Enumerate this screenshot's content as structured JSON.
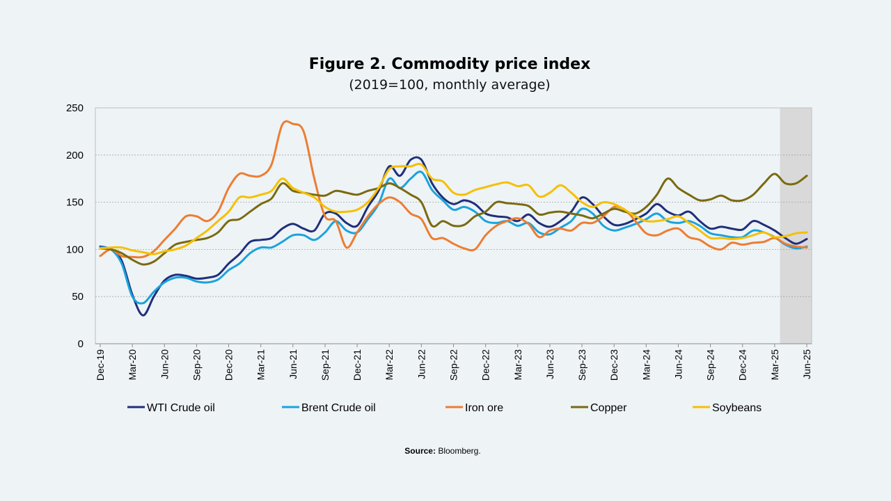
{
  "chart_data": {
    "type": "line",
    "title": "Figure 2. Commodity price index",
    "subtitle": "(2019=100, monthly average)",
    "ylim": [
      0,
      250
    ],
    "yticks": [
      0,
      50,
      100,
      150,
      200,
      250
    ],
    "grid": "horizontal dashed",
    "shaded_period": {
      "from": "Apr-25",
      "to": "Jun-25"
    },
    "xticks": [
      "Dec-19",
      "Mar-20",
      "Jun-20",
      "Sep-20",
      "Dec-20",
      "Mar-21",
      "Jun-21",
      "Sep-21",
      "Dec-21",
      "Mar-22",
      "Jun-22",
      "Sep-22",
      "Dec-22",
      "Mar-23",
      "Jun-23",
      "Sep-23",
      "Dec-23",
      "Mar-24",
      "Jun-24",
      "Sep-24",
      "Dec-24",
      "Mar-25",
      "Jun-25"
    ],
    "x": [
      "Dec-19",
      "Jan-20",
      "Feb-20",
      "Mar-20",
      "Apr-20",
      "May-20",
      "Jun-20",
      "Jul-20",
      "Aug-20",
      "Sep-20",
      "Oct-20",
      "Nov-20",
      "Dec-20",
      "Jan-21",
      "Feb-21",
      "Mar-21",
      "Apr-21",
      "May-21",
      "Jun-21",
      "Jul-21",
      "Aug-21",
      "Sep-21",
      "Oct-21",
      "Nov-21",
      "Dec-21",
      "Jan-22",
      "Feb-22",
      "Mar-22",
      "Apr-22",
      "May-22",
      "Jun-22",
      "Jul-22",
      "Aug-22",
      "Sep-22",
      "Oct-22",
      "Nov-22",
      "Dec-22",
      "Jan-23",
      "Feb-23",
      "Mar-23",
      "Apr-23",
      "May-23",
      "Jun-23",
      "Jul-23",
      "Aug-23",
      "Sep-23",
      "Oct-23",
      "Nov-23",
      "Dec-23",
      "Jan-24",
      "Feb-24",
      "Mar-24",
      "Apr-24",
      "May-24",
      "Jun-24",
      "Jul-24",
      "Aug-24",
      "Sep-24",
      "Oct-24",
      "Nov-24",
      "Dec-24",
      "Jan-25",
      "Feb-25",
      "Mar-25",
      "Apr-25",
      "May-25",
      "Jun-25"
    ],
    "series": [
      {
        "name": "WTI Crude oil",
        "color": "#1f2f7a",
        "values": [
          103,
          100,
          88,
          52,
          30,
          50,
          67,
          73,
          72,
          69,
          70,
          73,
          85,
          95,
          108,
          110,
          112,
          122,
          127,
          122,
          120,
          138,
          138,
          128,
          125,
          145,
          162,
          188,
          178,
          195,
          195,
          170,
          155,
          148,
          152,
          148,
          138,
          135,
          134,
          130,
          137,
          128,
          124,
          130,
          140,
          155,
          148,
          135,
          126,
          127,
          132,
          138,
          148,
          140,
          136,
          140,
          130,
          122,
          124,
          122,
          121,
          130,
          126,
          120,
          112,
          106,
          111
        ]
      },
      {
        "name": "Brent Crude oil",
        "color": "#1aa3dc",
        "values": [
          102,
          100,
          85,
          50,
          43,
          55,
          65,
          70,
          70,
          66,
          65,
          68,
          78,
          85,
          96,
          102,
          102,
          108,
          115,
          115,
          110,
          118,
          130,
          120,
          118,
          132,
          148,
          175,
          165,
          175,
          182,
          163,
          152,
          142,
          145,
          140,
          130,
          128,
          130,
          125,
          128,
          118,
          116,
          123,
          130,
          143,
          138,
          125,
          120,
          123,
          127,
          132,
          138,
          130,
          128,
          130,
          125,
          117,
          115,
          113,
          113,
          120,
          118,
          113,
          105,
          101,
          103
        ]
      },
      {
        "name": "Iron ore",
        "color": "#ed7d31",
        "values": [
          93,
          100,
          93,
          92,
          92,
          98,
          110,
          122,
          135,
          135,
          130,
          140,
          165,
          180,
          178,
          178,
          190,
          232,
          233,
          225,
          175,
          135,
          130,
          102,
          118,
          135,
          148,
          155,
          150,
          138,
          132,
          112,
          112,
          106,
          101,
          100,
          115,
          125,
          130,
          133,
          127,
          113,
          120,
          122,
          120,
          128,
          128,
          135,
          145,
          142,
          130,
          117,
          115,
          120,
          122,
          113,
          110,
          103,
          100,
          107,
          105,
          107,
          108,
          112,
          106,
          103,
          102
        ]
      },
      {
        "name": "Copper",
        "color": "#7a6a10",
        "values": [
          101,
          100,
          96,
          89,
          84,
          87,
          96,
          105,
          108,
          110,
          112,
          118,
          130,
          132,
          140,
          148,
          154,
          170,
          162,
          160,
          158,
          157,
          162,
          160,
          158,
          162,
          165,
          170,
          165,
          158,
          150,
          125,
          130,
          125,
          126,
          135,
          140,
          150,
          149,
          148,
          146,
          137,
          139,
          140,
          138,
          136,
          133,
          138,
          143,
          140,
          138,
          145,
          158,
          175,
          165,
          158,
          152,
          153,
          157,
          152,
          152,
          158,
          170,
          180,
          170,
          170,
          178
        ]
      },
      {
        "name": "Soybeans",
        "color": "#f5c000",
        "values": [
          101,
          102,
          102,
          99,
          97,
          95,
          98,
          100,
          104,
          112,
          120,
          130,
          140,
          155,
          155,
          158,
          162,
          175,
          165,
          160,
          155,
          145,
          140,
          140,
          142,
          150,
          165,
          185,
          188,
          188,
          190,
          175,
          172,
          160,
          158,
          163,
          166,
          169,
          171,
          167,
          168,
          156,
          160,
          168,
          160,
          150,
          145,
          150,
          148,
          142,
          135,
          130,
          130,
          132,
          135,
          128,
          120,
          112,
          112,
          111,
          112,
          115,
          118,
          113,
          114,
          117,
          118
        ]
      }
    ]
  }
}
